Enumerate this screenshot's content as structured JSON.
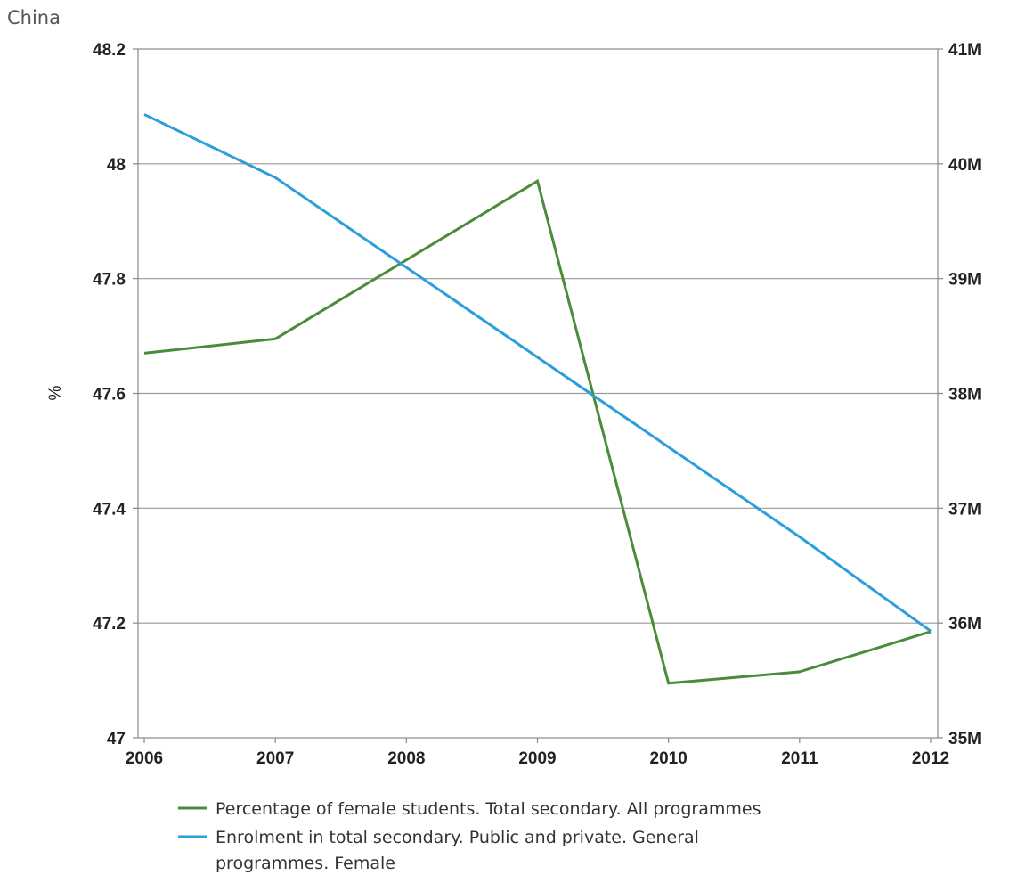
{
  "chart_data": {
    "type": "line",
    "title": "China",
    "ylabel_left": "%",
    "ylabel_right": "",
    "categories": [
      "2006",
      "2007",
      "2008",
      "2009",
      "2010",
      "2011",
      "2012"
    ],
    "y_left": {
      "range": [
        47,
        48.2
      ],
      "ticks": [
        47,
        47.2,
        47.4,
        47.6,
        47.8,
        48,
        48.2
      ],
      "tick_labels": [
        "47",
        "47.2",
        "47.4",
        "47.6",
        "47.8",
        "48",
        "48.2"
      ]
    },
    "y_right": {
      "range": [
        35,
        41
      ],
      "ticks": [
        35,
        36,
        37,
        38,
        39,
        40,
        41
      ],
      "tick_labels": [
        "35M",
        "36M",
        "37M",
        "38M",
        "39M",
        "40M",
        "41M"
      ]
    },
    "grid": true,
    "legend_position": "bottom",
    "series": [
      {
        "name": "Percentage of female students. Total secondary. All programmes",
        "axis": "left",
        "color": "#4a8c3a",
        "values": [
          47.67,
          47.695,
          null,
          47.97,
          47.095,
          47.115,
          47.185
        ]
      },
      {
        "name": "Enrolment in total secondary. Public and private. General programmes. Female",
        "legend_lines": [
          "Enrolment in total secondary. Public and private. General",
          "programmes. Female"
        ],
        "axis": "right",
        "color": "#2b9fd9",
        "values": [
          40.43,
          39.88,
          null,
          null,
          null,
          36.75,
          35.93
        ]
      }
    ]
  }
}
